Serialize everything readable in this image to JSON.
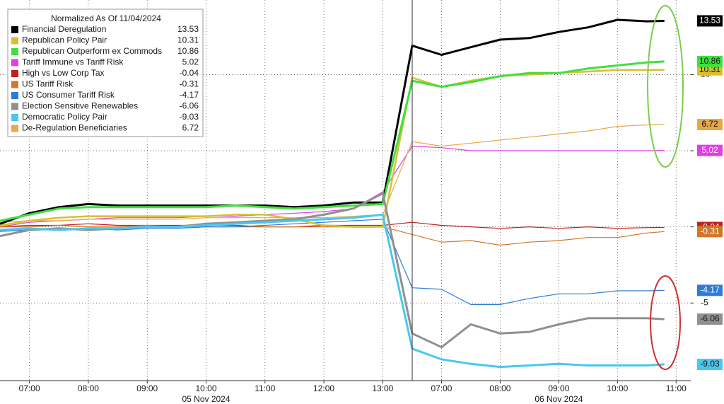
{
  "chart_data": {
    "type": "line",
    "legend_title": "Normalized As Of 11/04/2024",
    "x": [
      6.5,
      7,
      7.5,
      8,
      8.5,
      9,
      9.5,
      10,
      10.5,
      11,
      11.5,
      12,
      12.5,
      13,
      30.5,
      31,
      31.5,
      32,
      32.5,
      33,
      33.5,
      34,
      34.5,
      34.8
    ],
    "xlim": [
      6.5,
      35.25
    ],
    "xbreak": [
      13.5,
      30.5
    ],
    "xticks": [
      {
        "value": 7,
        "label": "07:00"
      },
      {
        "value": 8,
        "label": "08:00"
      },
      {
        "value": 9,
        "label": "09:00"
      },
      {
        "value": 10,
        "label": "10:00"
      },
      {
        "value": 11,
        "label": "11:00"
      },
      {
        "value": 12,
        "label": "12:00"
      },
      {
        "value": 13,
        "label": "13:00"
      },
      {
        "value": 31,
        "label": "07:00"
      },
      {
        "value": 32,
        "label": "08:00"
      },
      {
        "value": 33,
        "label": "09:00"
      },
      {
        "value": 34,
        "label": "10:00"
      },
      {
        "value": 35,
        "label": "11:00"
      }
    ],
    "day_labels": [
      {
        "value": 10,
        "label": "05 Nov 2024"
      },
      {
        "value": 33,
        "label": "06 Nov 2024"
      }
    ],
    "ylim": [
      -10.1,
      14.9
    ],
    "yticks": [
      -5,
      0,
      5,
      10
    ],
    "grid": true,
    "legend": "upper left",
    "series": [
      {
        "name": "Financial Deregulation",
        "color": "#000000",
        "width": 3,
        "values": [
          0.2,
          0.9,
          1.3,
          1.5,
          1.4,
          1.4,
          1.4,
          1.4,
          1.4,
          1.4,
          1.3,
          1.4,
          1.6,
          1.6,
          11.9,
          11.3,
          11.8,
          12.3,
          12.4,
          12.8,
          13.1,
          13.6,
          13.5,
          13.53
        ]
      },
      {
        "name": "Republican Policy Pair",
        "color": "#d8c030",
        "width": 2.5,
        "values": [
          0.1,
          0.4,
          0.6,
          0.7,
          0.7,
          0.7,
          0.7,
          0.7,
          0.8,
          0.8,
          0.5,
          0.1,
          0,
          0,
          9.8,
          9.2,
          9.6,
          9.9,
          10.0,
          10.1,
          10.2,
          10.3,
          10.3,
          10.31
        ]
      },
      {
        "name": "Republican Outperform ex Commods",
        "color": "#40e040",
        "width": 3,
        "values": [
          0.4,
          0.8,
          1.2,
          1.3,
          1.3,
          1.3,
          1.3,
          1.3,
          1.4,
          1.3,
          1.2,
          1.3,
          1.4,
          1.5,
          9.6,
          9.2,
          9.5,
          9.9,
          10.1,
          10.1,
          10.4,
          10.6,
          10.8,
          10.86
        ]
      },
      {
        "name": "Tariff Immune vs Tariff Risk",
        "color": "#e040e0",
        "width": 1.2,
        "values": [
          0,
          0.3,
          0.4,
          0.5,
          0.6,
          0.6,
          0.6,
          0.7,
          0.7,
          0.8,
          0.9,
          1.0,
          1.2,
          2.3,
          5.3,
          5.2,
          5.0,
          5.0,
          5.0,
          5.0,
          5.0,
          5.0,
          5.0,
          5.02
        ]
      },
      {
        "name": "High vs Low Corp Tax",
        "color": "#c02020",
        "width": 1.2,
        "values": [
          0,
          0.1,
          0.1,
          0.2,
          0.1,
          0.1,
          0.1,
          0.1,
          0.1,
          0,
          0,
          0.1,
          0.1,
          0.1,
          0.3,
          0.1,
          0,
          -0.1,
          0,
          -0.1,
          0,
          -0.1,
          -0.05,
          -0.04
        ]
      },
      {
        "name": "US Tariff Risk",
        "color": "#d07828",
        "width": 1.2,
        "values": [
          0,
          0,
          0.1,
          0,
          0,
          0.1,
          0,
          0,
          0,
          0,
          0,
          0,
          0,
          0,
          -0.5,
          -1.0,
          -0.9,
          -1.2,
          -1.0,
          -0.9,
          -0.7,
          -0.7,
          -0.4,
          -0.31
        ]
      },
      {
        "name": "US Consumer Tariff Risk",
        "color": "#2c7cd8",
        "width": 1.2,
        "values": [
          -0.3,
          -0.2,
          -0.2,
          -0.1,
          -0.2,
          -0.1,
          -0.1,
          0,
          0,
          0.1,
          0.2,
          0.3,
          0.4,
          0.5,
          -4.0,
          -4.1,
          -5.1,
          -5.1,
          -4.7,
          -4.4,
          -4.4,
          -4.2,
          -4.2,
          -4.17
        ]
      },
      {
        "name": "Election Sensitive Renewables",
        "color": "#909090",
        "width": 3,
        "values": [
          -0.6,
          -0.2,
          -0.1,
          -0.2,
          -0.1,
          0,
          0,
          0.2,
          0.3,
          0.4,
          0.5,
          0.8,
          1.2,
          2.2,
          -7.0,
          -7.9,
          -6.4,
          -7.0,
          -6.9,
          -6.4,
          -6.0,
          -6.0,
          -6.0,
          -6.06
        ]
      },
      {
        "name": "Democratic Policy Pair",
        "color": "#48c8f0",
        "width": 3,
        "values": [
          -0.2,
          -0.1,
          -0.2,
          -0.1,
          -0.1,
          0,
          0,
          0.1,
          0.2,
          0.3,
          0.4,
          0.5,
          0.6,
          0.8,
          -8.0,
          -8.7,
          -9.0,
          -9.2,
          -9.1,
          -9.0,
          -9.1,
          -9.1,
          -9.1,
          -9.03
        ]
      },
      {
        "name": "De-Regulation Beneficiaries",
        "color": "#e8a848",
        "width": 1.2,
        "values": [
          0.3,
          0.4,
          0.4,
          0.5,
          0.5,
          0.5,
          0.5,
          0.6,
          0.6,
          0.6,
          0.6,
          0.6,
          0.7,
          0.8,
          5.6,
          5.3,
          5.5,
          5.7,
          5.9,
          6.1,
          6.3,
          6.6,
          6.7,
          6.72
        ]
      }
    ]
  }
}
